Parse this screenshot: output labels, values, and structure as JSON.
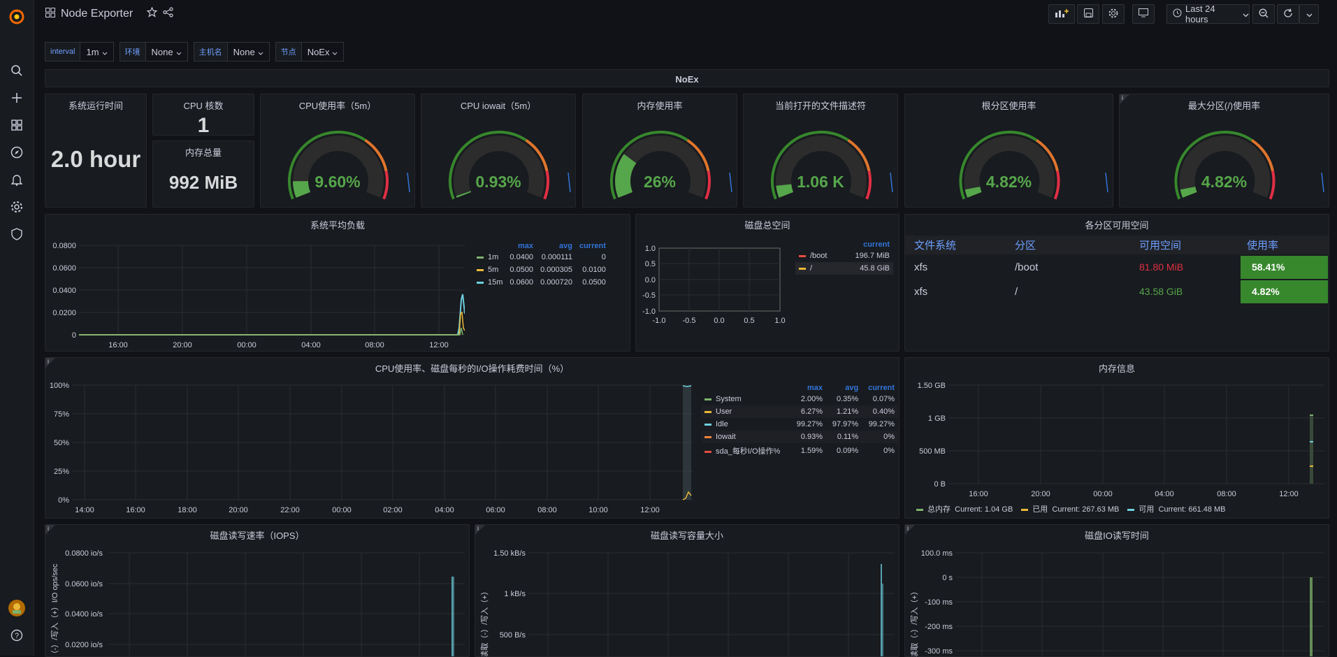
{
  "topbar": {
    "title": "Node Exporter",
    "time_range": "Last 24 hours"
  },
  "vars": [
    {
      "label": "interval",
      "value": "1m"
    },
    {
      "label": "环境",
      "value": "None"
    },
    {
      "label": "主机名",
      "value": "None"
    },
    {
      "label": "节点",
      "value": "NoEx"
    }
  ],
  "row": {
    "title": "NoEx"
  },
  "stats": {
    "uptime": {
      "title": "系统运行时间",
      "value": "2.0 hour"
    },
    "cpu_cores": {
      "title": "CPU 核数",
      "value": "1"
    },
    "mem_total": {
      "title": "内存总量",
      "value": "992 MiB"
    }
  },
  "gauges": [
    {
      "title": "CPU使用率（5m）",
      "value": "9.60%",
      "fraction": 0.096
    },
    {
      "title": "CPU iowait（5m）",
      "value": "0.93%",
      "fraction": 0.0093
    },
    {
      "title": "内存使用率",
      "value": "26%",
      "fraction": 0.26
    },
    {
      "title": "当前打开的文件描述符",
      "value": "1.06 K",
      "fraction": 0.07
    },
    {
      "title": "根分区使用率",
      "value": "4.82%",
      "fraction": 0.0482
    },
    {
      "title": "最大分区(/)使用率",
      "value": "4.82%",
      "fraction": 0.0482
    }
  ],
  "colors": {
    "green": "#37872d",
    "greenText": "#56a64b",
    "orange": "#e0752d",
    "red": "#e02f44",
    "yellow": "#fade2a",
    "cyan": "#6ed0e0",
    "blue": "#3274d9"
  },
  "load": {
    "title": "系统平均负载",
    "legend_headers": [
      "max",
      "avg",
      "current"
    ],
    "series": [
      {
        "name": "1m",
        "max": "0.0400",
        "avg": "0.000111",
        "current": "0",
        "color": "#7eb26d"
      },
      {
        "name": "5m",
        "max": "0.0500",
        "avg": "0.000305",
        "current": "0.0100",
        "color": "#eab839"
      },
      {
        "name": "15m",
        "max": "0.0600",
        "avg": "0.000720",
        "current": "0.0500",
        "color": "#6ed0e0"
      }
    ]
  },
  "disk_total": {
    "title": "磁盘总空间",
    "legend_header": "current",
    "series": [
      {
        "name": "/boot",
        "current": "196.7 MiB",
        "color": "#e24d42"
      },
      {
        "name": "/",
        "current": "45.8 GiB",
        "color": "#eab839"
      }
    ]
  },
  "partitions": {
    "title": "各分区可用空间",
    "headers": [
      "文件系统",
      "分区",
      "可用空间",
      "使用率"
    ],
    "rows": [
      {
        "fs": "xfs",
        "mount": "/boot",
        "avail": "81.80 MiB",
        "usage": "58.41%",
        "availColor": "#e02f44"
      },
      {
        "fs": "xfs",
        "mount": "/",
        "avail": "43.58 GiB",
        "usage": "4.82%",
        "availColor": "#56a64b"
      }
    ]
  },
  "cpu_io": {
    "title": "CPU使用率、磁盘每秒的I/O操作耗费时间（%）",
    "legend_headers": [
      "max",
      "avg",
      "current"
    ],
    "series": [
      {
        "name": "System",
        "max": "2.00%",
        "avg": "0.35%",
        "current": "0.07%",
        "color": "#7eb26d"
      },
      {
        "name": "User",
        "max": "6.27%",
        "avg": "1.21%",
        "current": "0.40%",
        "color": "#eab839"
      },
      {
        "name": "Idle",
        "max": "99.27%",
        "avg": "97.97%",
        "current": "99.27%",
        "color": "#6ed0e0"
      },
      {
        "name": "Iowait",
        "max": "0.93%",
        "avg": "0.11%",
        "current": "0%",
        "color": "#ef843c"
      },
      {
        "name": "sda_每秒I/O操作%",
        "max": "1.59%",
        "avg": "0.09%",
        "current": "0%",
        "color": "#e24d42"
      }
    ]
  },
  "mem_info": {
    "title": "内存信息",
    "series": [
      {
        "name": "总内存",
        "current": "Current: 1.04 GB",
        "color": "#7eb26d"
      },
      {
        "name": "已用",
        "current": "Current: 267.63 MB",
        "color": "#eab839"
      },
      {
        "name": "可用",
        "current": "Current: 661.48 MB",
        "color": "#6ed0e0"
      }
    ]
  },
  "iops": {
    "title": "磁盘读写速率（IOPS）",
    "ylabel": "读取（-）/写入（+）I/O ops/sec"
  },
  "disk_bytes": {
    "title": "磁盘读写容量大小",
    "ylabel": "读取（-）/写入（+）"
  },
  "disk_io_time": {
    "title": "磁盘IO读写时间",
    "ylabel": "读取（-）/写入（+）"
  },
  "chart_data": [
    {
      "type": "line",
      "title": "系统平均负载",
      "x": [
        "16:00",
        "20:00",
        "00:00",
        "04:00",
        "08:00",
        "12:00"
      ],
      "yticks": [
        "0.0800",
        "0.0600",
        "0.0400",
        "0.0200",
        "0"
      ],
      "ylim": [
        0,
        0.08
      ]
    },
    {
      "type": "line",
      "title": "磁盘总空间",
      "x": [
        "-1.0",
        "-0.5",
        "0.0",
        "0.5",
        "1.0"
      ],
      "yticks": [
        "1.0",
        "0.5",
        "0.0",
        "-0.5",
        "-1.0"
      ]
    },
    {
      "type": "line",
      "title": "CPU使用率、磁盘每秒的I/O操作耗费时间（%）",
      "x": [
        "14:00",
        "16:00",
        "18:00",
        "20:00",
        "22:00",
        "00:00",
        "02:00",
        "04:00",
        "06:00",
        "08:00",
        "10:00",
        "12:00"
      ],
      "yticks": [
        "100%",
        "75%",
        "50%",
        "25%",
        "0%"
      ]
    },
    {
      "type": "line",
      "title": "内存信息",
      "x": [
        "16:00",
        "20:00",
        "00:00",
        "04:00",
        "08:00",
        "12:00"
      ],
      "yticks": [
        "1.50 GB",
        "1 GB",
        "500 MB",
        "0 B"
      ]
    },
    {
      "type": "line",
      "title": "磁盘读写速率（IOPS）",
      "yticks": [
        "0.0800 io/s",
        "0.0600 io/s",
        "0.0400 io/s",
        "0.0200 io/s"
      ]
    },
    {
      "type": "line",
      "title": "磁盘读写容量大小",
      "yticks": [
        "1.50 kB/s",
        "1 kB/s",
        "500 B/s"
      ]
    },
    {
      "type": "line",
      "title": "磁盘IO读写时间",
      "yticks": [
        "100.0 ms",
        "0 s",
        "-100 ms",
        "-200 ms",
        "-300 ms"
      ]
    }
  ]
}
